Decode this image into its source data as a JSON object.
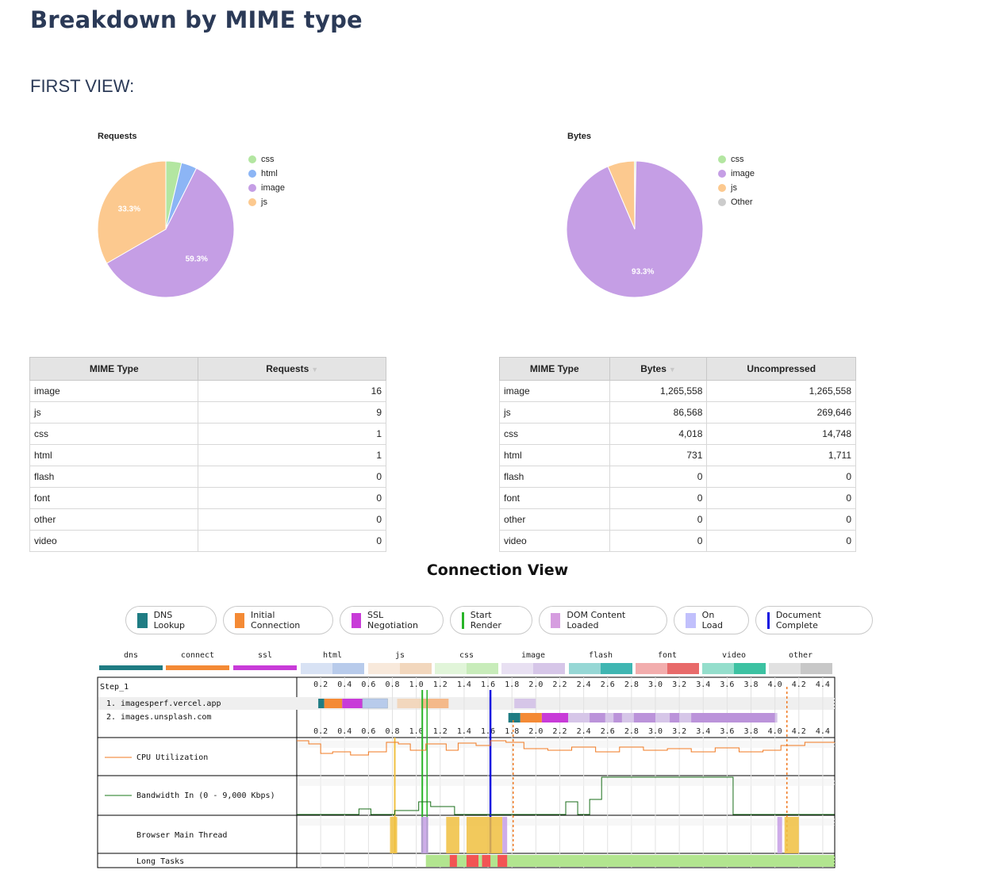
{
  "heading": "Breakdown by MIME type",
  "first_view_label": "FIRST VIEW:",
  "pies": {
    "requests": {
      "title": "Requests",
      "legend": [
        {
          "label": "css",
          "color": "#b3e6a1"
        },
        {
          "label": "html",
          "color": "#8cb5f5"
        },
        {
          "label": "image",
          "color": "#c59ee5"
        },
        {
          "label": "js",
          "color": "#fcc98f"
        }
      ],
      "slices": [
        {
          "label": "css",
          "value": 1,
          "color": "#b3e6a1"
        },
        {
          "label": "html",
          "value": 1,
          "color": "#8cb5f5"
        },
        {
          "label": "image",
          "value": 16,
          "color": "#c59ee5"
        },
        {
          "label": "js",
          "value": 9,
          "color": "#fcc98f"
        }
      ],
      "data_labels": {
        "image": "59.3%",
        "js": "33.3%"
      }
    },
    "bytes": {
      "title": "Bytes",
      "legend": [
        {
          "label": "css",
          "color": "#b3e6a1"
        },
        {
          "label": "image",
          "color": "#c59ee5"
        },
        {
          "label": "js",
          "color": "#fcc98f"
        },
        {
          "label": "Other",
          "color": "#cccccc"
        }
      ],
      "slices": [
        {
          "label": "css",
          "value": 4018,
          "color": "#b3e6a1"
        },
        {
          "label": "image",
          "value": 1265558,
          "color": "#c59ee5"
        },
        {
          "label": "js",
          "value": 86568,
          "color": "#fcc98f"
        },
        {
          "label": "Other",
          "value": 731,
          "color": "#cccccc"
        }
      ],
      "data_labels": {
        "image": "93.3%"
      }
    }
  },
  "requests_table": {
    "headers": [
      "MIME Type",
      "Requests"
    ],
    "rows": [
      [
        "image",
        "16"
      ],
      [
        "js",
        "9"
      ],
      [
        "css",
        "1"
      ],
      [
        "html",
        "1"
      ],
      [
        "flash",
        "0"
      ],
      [
        "font",
        "0"
      ],
      [
        "other",
        "0"
      ],
      [
        "video",
        "0"
      ]
    ]
  },
  "bytes_table": {
    "headers": [
      "MIME Type",
      "Bytes",
      "Uncompressed"
    ],
    "rows": [
      [
        "image",
        "1,265,558",
        "1,265,558"
      ],
      [
        "js",
        "86,568",
        "269,646"
      ],
      [
        "css",
        "4,018",
        "14,748"
      ],
      [
        "html",
        "731",
        "1,711"
      ],
      [
        "flash",
        "0",
        "0"
      ],
      [
        "font",
        "0",
        "0"
      ],
      [
        "other",
        "0",
        "0"
      ],
      [
        "video",
        "0",
        "0"
      ]
    ]
  },
  "connection_view": {
    "title": "Connection View",
    "legend": [
      {
        "label": "DNS Lookup",
        "color": "#1f7c83",
        "kind": "swatch"
      },
      {
        "label": "Initial Connection",
        "color": "#f48a35",
        "kind": "swatch"
      },
      {
        "label": "SSL Negotiation",
        "color": "#c83bd8",
        "kind": "swatch"
      },
      {
        "label": "Start Render",
        "color": "#28b428",
        "kind": "line"
      },
      {
        "label": "DOM Content Loaded",
        "color": "#d69de0",
        "kind": "swatch"
      },
      {
        "label": "On Load",
        "color": "#c1c0fc",
        "kind": "swatch"
      },
      {
        "label": "Document Complete",
        "color": "#1010e0",
        "kind": "line"
      }
    ],
    "type_keys": [
      {
        "label": "dns",
        "color": "#1f7c83"
      },
      {
        "label": "connect",
        "color": "#f48a35"
      },
      {
        "label": "ssl",
        "color": "#c83bd8"
      },
      {
        "label": "html",
        "color": "#b8cbeb"
      },
      {
        "label": "js",
        "color": "#f2d7bd"
      },
      {
        "label": "css",
        "color": "#c8ecba"
      },
      {
        "label": "image",
        "color": "#d6c6e8"
      },
      {
        "label": "flash",
        "color": "#3fb6b2"
      },
      {
        "label": "font",
        "color": "#e86a6a"
      },
      {
        "label": "video",
        "color": "#3cc2a2"
      },
      {
        "label": "other",
        "color": "#c8c8c8"
      }
    ],
    "step_label": "Step_1",
    "connections": [
      "1. imagesperf.vercel.app",
      "2. images.unsplash.com"
    ],
    "time_ticks": [
      "0.2",
      "0.4",
      "0.6",
      "0.8",
      "1.0",
      "1.2",
      "1.4",
      "1.6",
      "1.8",
      "2.0",
      "2.2",
      "2.4",
      "2.6",
      "2.8",
      "3.0",
      "3.2",
      "3.4",
      "3.6",
      "3.8",
      "4.0",
      "4.2",
      "4.4"
    ],
    "cpu_label": "CPU Utilization",
    "bandwidth_label": "Bandwidth In (0 - 9,000 Kbps)",
    "main_thread_label": "Browser Main Thread",
    "long_tasks_label": "Long Tasks"
  }
}
